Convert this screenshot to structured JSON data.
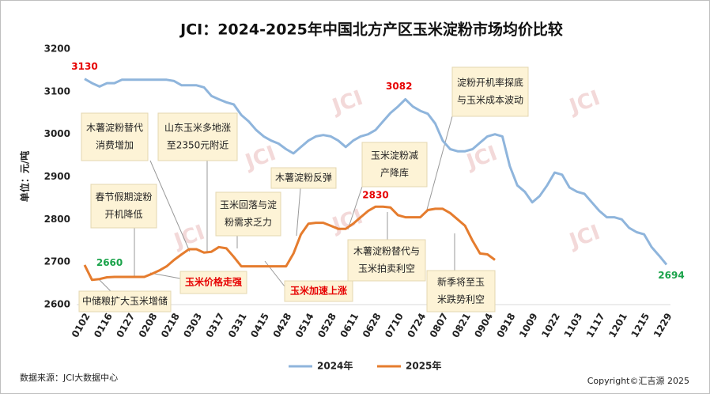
{
  "chart_data": {
    "type": "line",
    "title": "JCI：2024-2025年中国北方产区玉米淀粉市场均价比较",
    "y_label": "单位：元/吨",
    "source": "数据来源：JCI大数据中心",
    "copyright": "Copyright©汇吉源 2025",
    "watermark": "JCI",
    "categories": [
      "0102",
      null,
      null,
      "0116",
      null,
      null,
      "0127",
      null,
      null,
      "0208",
      null,
      null,
      "0218",
      null,
      null,
      "0303",
      null,
      null,
      "0317",
      null,
      null,
      "0331",
      null,
      null,
      "0415",
      null,
      null,
      "0428",
      null,
      null,
      "0514",
      null,
      null,
      "0528",
      null,
      null,
      "0611",
      null,
      null,
      "0628",
      null,
      null,
      "0710",
      null,
      null,
      "0724",
      null,
      null,
      "0807",
      null,
      null,
      "0821",
      null,
      null,
      "0904",
      null,
      null,
      "0918",
      null,
      null,
      "1009",
      null,
      null,
      "1022",
      null,
      null,
      "1103",
      null,
      null,
      "1117",
      null,
      null,
      "1201",
      null,
      null,
      "1215",
      null,
      null,
      "1229"
    ],
    "series": [
      {
        "name": "2024年",
        "color": "#8fb5dc",
        "values": [
          3130,
          3120,
          3112,
          3120,
          3120,
          3128,
          3128,
          3128,
          3128,
          3128,
          3128,
          3128,
          3125,
          3115,
          3115,
          3115,
          3110,
          3090,
          3082,
          3075,
          3070,
          3045,
          3030,
          3010,
          2995,
          2985,
          2978,
          2965,
          2955,
          2970,
          2985,
          2995,
          2998,
          2995,
          2985,
          2970,
          2985,
          2995,
          3000,
          3010,
          3030,
          3050,
          3065,
          3082,
          3065,
          3055,
          3048,
          3025,
          2985,
          2965,
          2960,
          2960,
          2965,
          2980,
          2995,
          3000,
          2995,
          2925,
          2880,
          2865,
          2840,
          2855,
          2880,
          2910,
          2905,
          2875,
          2865,
          2860,
          2840,
          2820,
          2805,
          2805,
          2800,
          2780,
          2770,
          2765,
          2735,
          2715,
          2694
        ]
      },
      {
        "name": "2025年",
        "color": "#e57c2e",
        "values": [
          2693,
          2658,
          2660,
          2664,
          2665,
          2665,
          2665,
          2665,
          2665,
          2672,
          2680,
          2690,
          2705,
          2718,
          2730,
          2730,
          2722,
          2724,
          2735,
          2732,
          2712,
          2690,
          2690,
          2690,
          2690,
          2690,
          2690,
          2690,
          2720,
          2765,
          2790,
          2792,
          2792,
          2785,
          2778,
          2778,
          2790,
          2805,
          2820,
          2830,
          2830,
          2828,
          2810,
          2805,
          2805,
          2805,
          2822,
          2825,
          2825,
          2815,
          2800,
          2785,
          2750,
          2720,
          2718,
          2705,
          null,
          null,
          null,
          null,
          null,
          null,
          null,
          null,
          null,
          null,
          null,
          null,
          null,
          null,
          null,
          null,
          null,
          null,
          null,
          null,
          null,
          null,
          null
        ]
      }
    ],
    "ylim": [
      2600,
      3200
    ],
    "yticks": [
      2600,
      2700,
      2800,
      2900,
      3000,
      3100,
      3200
    ],
    "grid": false,
    "annotations": [
      {
        "lines": [
          "木薯淀粉替代",
          "消费增加"
        ]
      },
      {
        "lines": [
          "山东玉米多地涨",
          "至2350元附近"
        ]
      },
      {
        "lines": [
          "春节假期淀粉",
          "开机降低"
        ]
      },
      {
        "lines": [
          "中储粮扩大玉米增储"
        ]
      },
      {
        "lines": [
          "玉米价格走强"
        ],
        "color": "#e60000"
      },
      {
        "lines": [
          "玉米回落与淀",
          "粉需求乏力"
        ]
      },
      {
        "lines": [
          "木薯淀粉反弹"
        ]
      },
      {
        "lines": [
          "玉米加速上涨"
        ],
        "color": "#e60000"
      },
      {
        "lines": [
          "玉米淀粉减",
          "产降库"
        ]
      },
      {
        "lines": [
          "木薯淀粉替代与",
          "玉米拍卖利空"
        ]
      },
      {
        "lines": [
          "淀粉开机率探底",
          "与玉米成本波动"
        ]
      },
      {
        "lines": [
          "新季将至玉",
          "米跌势利空"
        ]
      }
    ]
  }
}
